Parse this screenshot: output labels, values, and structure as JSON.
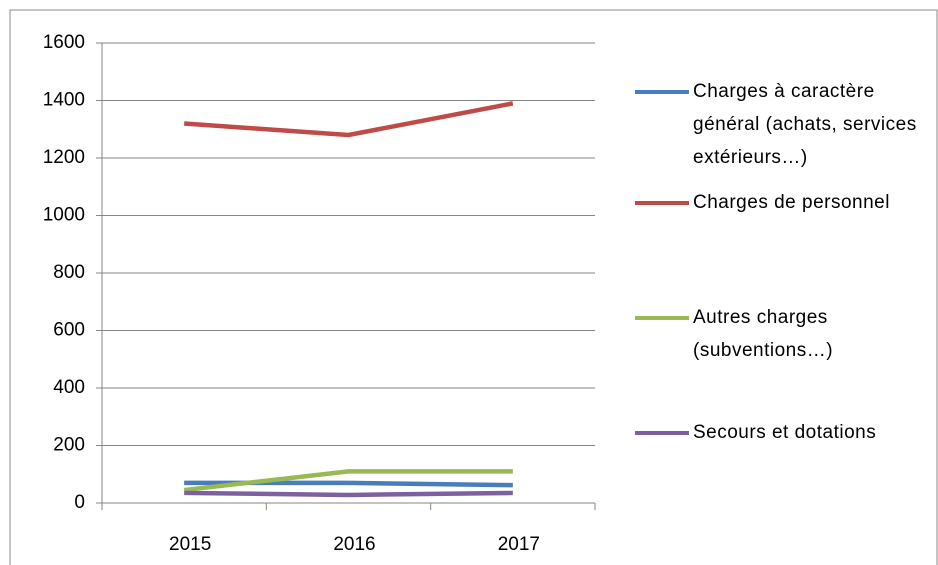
{
  "chart_data": {
    "type": "line",
    "categories": [
      "2015",
      "2016",
      "2017"
    ],
    "series": [
      {
        "name": "Charges à caractère général (achats, services extérieurs…)",
        "color": "#4a7ebb",
        "values": [
          70,
          70,
          62
        ]
      },
      {
        "name": "Charges de personnel",
        "color": "#be4b48",
        "values": [
          1320,
          1280,
          1390
        ]
      },
      {
        "name": "Autres charges (subventions…)",
        "color": "#98b954",
        "values": [
          45,
          110,
          110
        ]
      },
      {
        "name": "Secours et dotations",
        "color": "#7d60a0",
        "values": [
          35,
          28,
          35
        ]
      }
    ],
    "ylim": [
      0,
      1600
    ],
    "yticks": [
      0,
      200,
      400,
      600,
      800,
      1000,
      1200,
      1400,
      1600
    ],
    "grid": true,
    "legend": "right"
  }
}
